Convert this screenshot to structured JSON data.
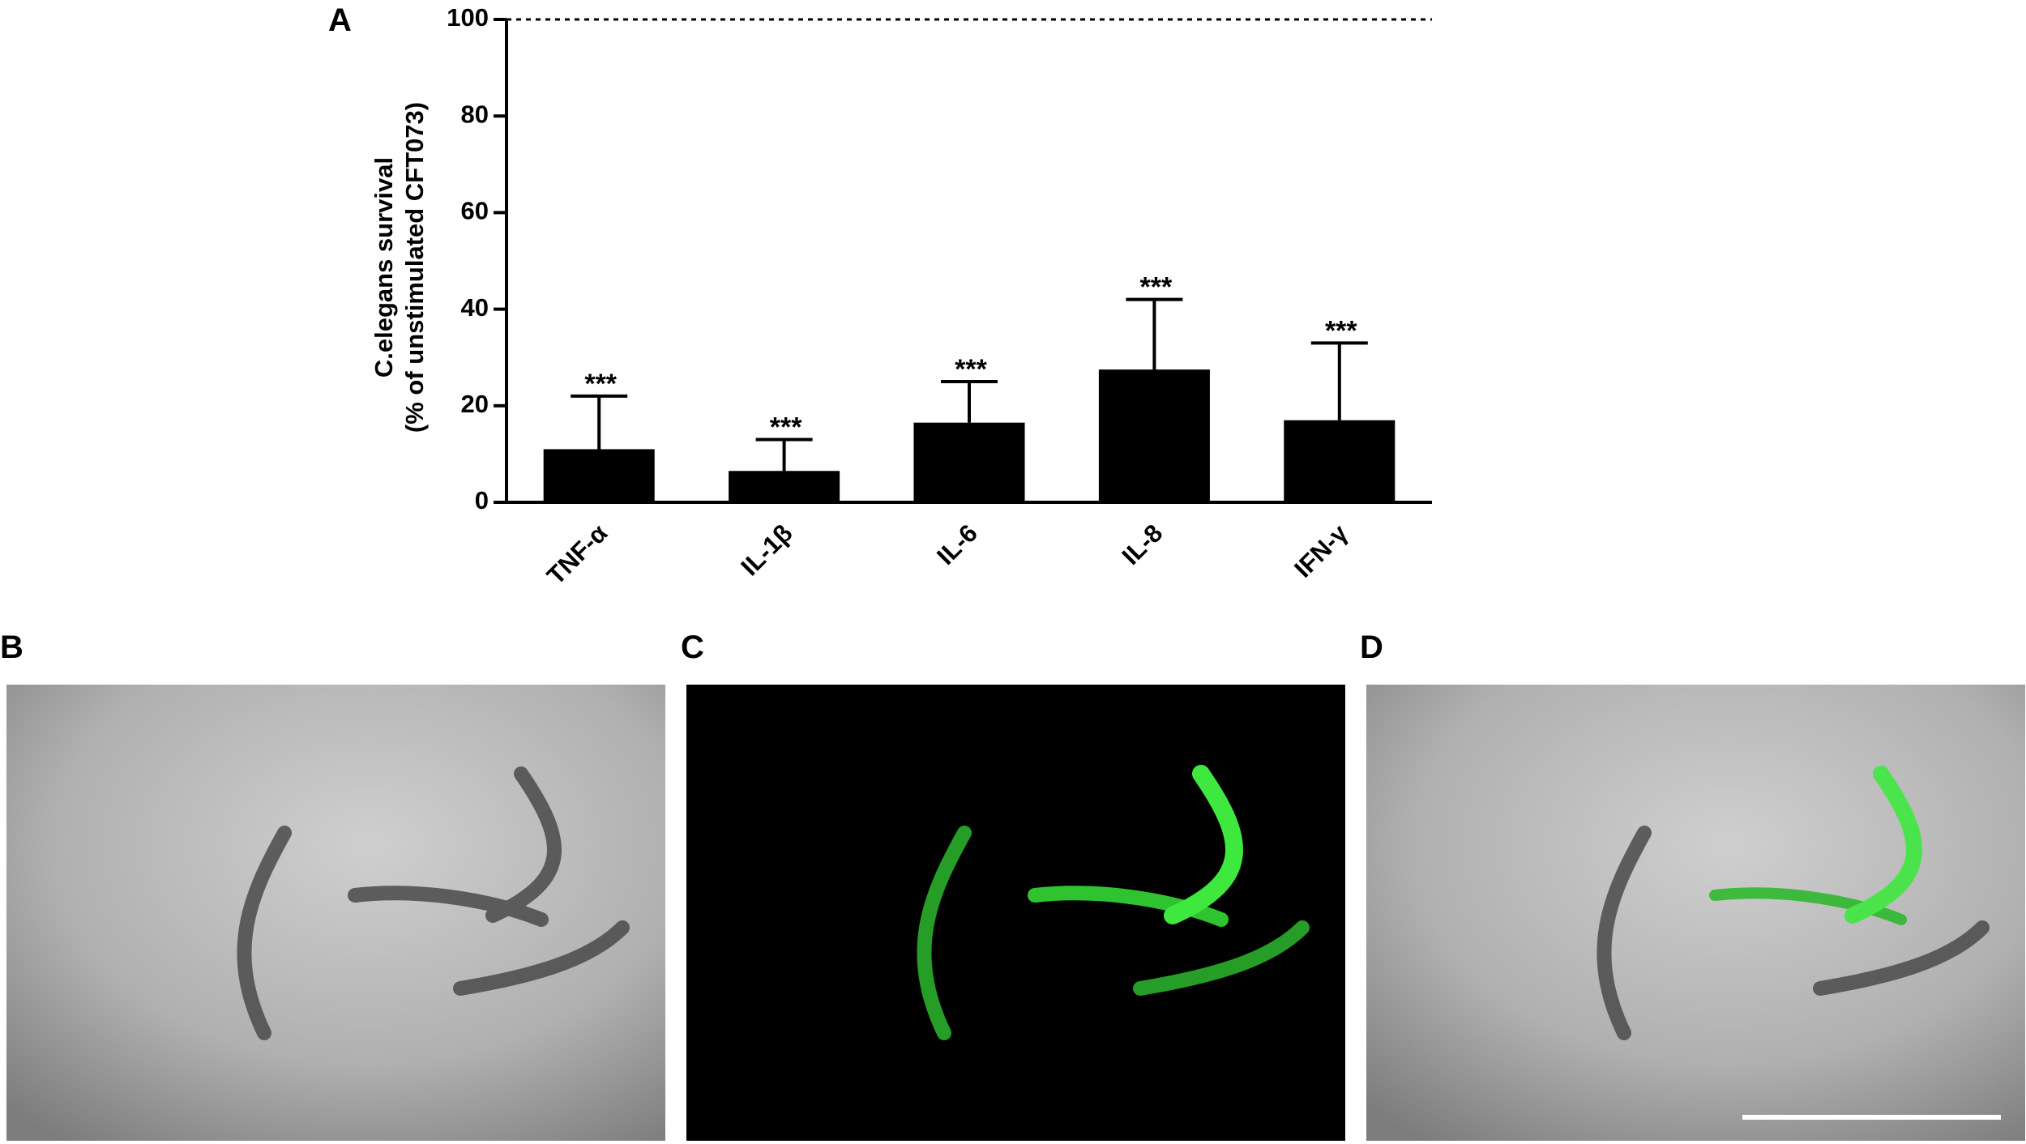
{
  "chart_data": {
    "type": "bar",
    "panel_label": "A",
    "y_label": [
      "C.elegans survival",
      "(% of unstimulated CFT073)"
    ],
    "categories": [
      "TNF-α",
      "IL-1β",
      "IL-6",
      "IL-8",
      "IFN-γ"
    ],
    "values": [
      11,
      6.5,
      16.5,
      27.5,
      17
    ],
    "errors": [
      11,
      6.5,
      8.5,
      14.5,
      16
    ],
    "annotations": [
      "***",
      "***",
      "***",
      "***",
      "***"
    ],
    "color": "#000000",
    "ylim": [
      0,
      100
    ],
    "yticks": [
      0,
      20,
      40,
      60,
      80,
      100
    ],
    "reference_line": 100
  },
  "panels": [
    {
      "label": "B"
    },
    {
      "label": "C"
    },
    {
      "label": "D"
    }
  ]
}
